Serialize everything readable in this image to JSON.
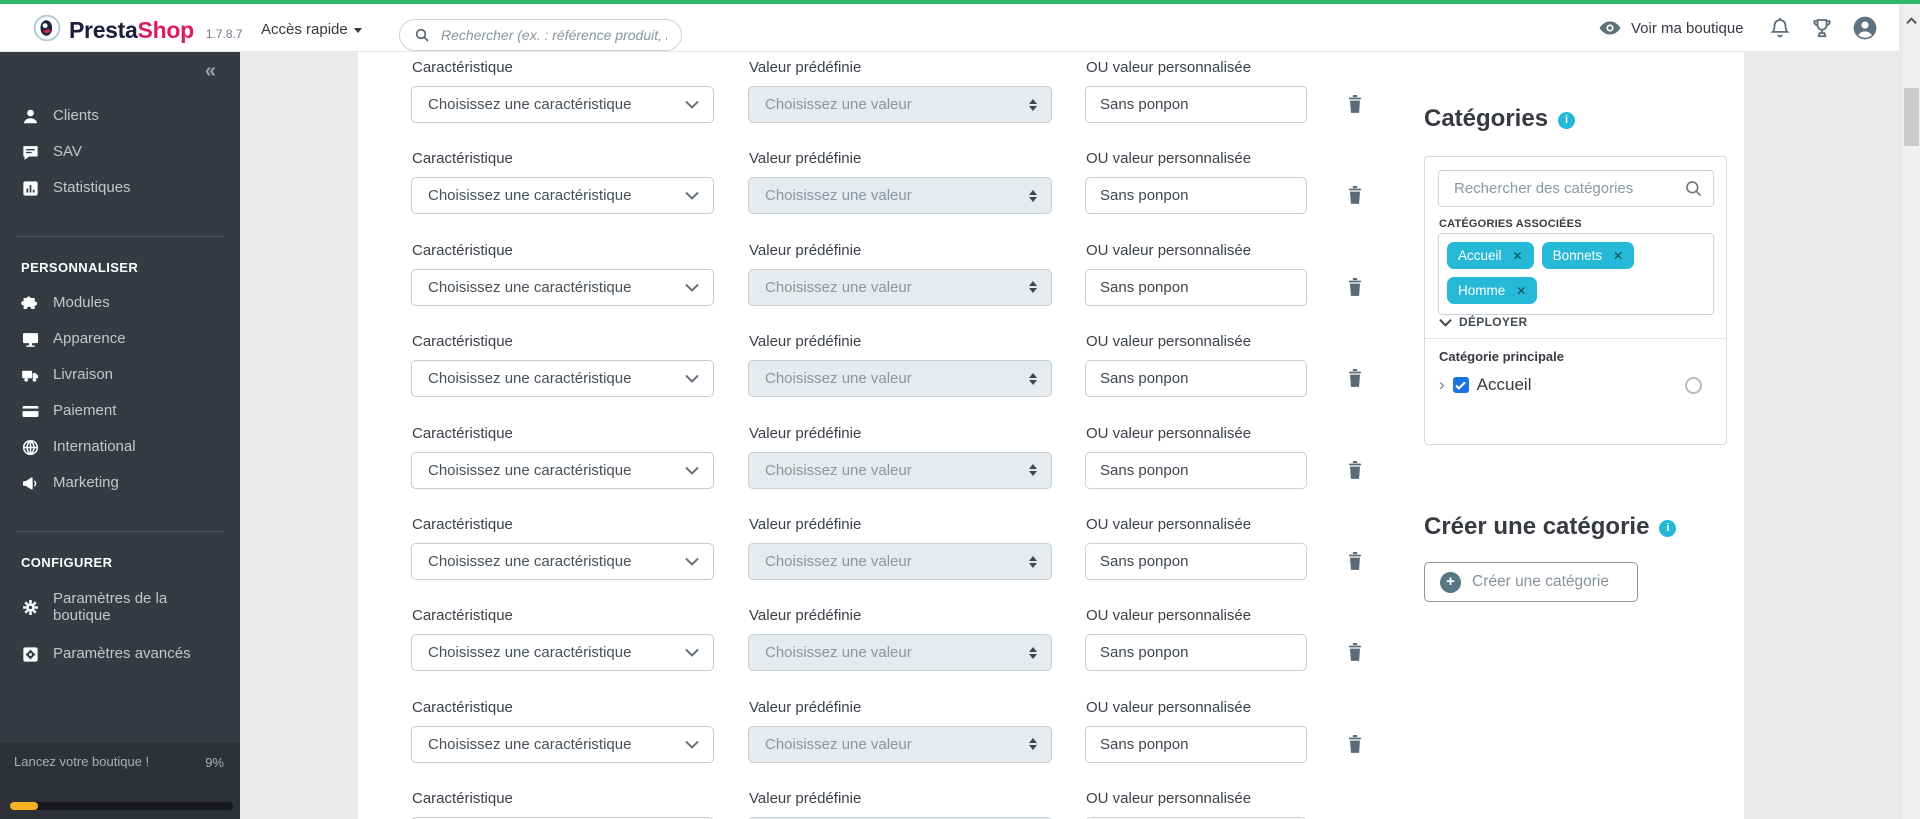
{
  "topbar": {
    "brand_primary": "Presta",
    "brand_secondary": "Shop",
    "version": "1.7.8.7",
    "quick_access_label": "Accès rapide",
    "search_placeholder": "Rechercher (ex. : référence produit, no",
    "view_shop_label": "Voir ma boutique",
    "right_icons": [
      "eye-icon",
      "bell-icon",
      "trophy-icon",
      "avatar-icon"
    ]
  },
  "sidebar": {
    "collapse_glyph": "«",
    "sections": [
      {
        "header": "",
        "items": [
          {
            "label": "Clients",
            "icon": "person-icon"
          },
          {
            "label": "SAV",
            "icon": "chat-icon"
          },
          {
            "label": "Statistiques",
            "icon": "stats-icon"
          }
        ]
      },
      {
        "header": "PERSONNALISER",
        "items": [
          {
            "label": "Modules",
            "icon": "puzzle-icon"
          },
          {
            "label": "Apparence",
            "icon": "monitor-icon"
          },
          {
            "label": "Livraison",
            "icon": "truck-icon"
          },
          {
            "label": "Paiement",
            "icon": "card-icon"
          },
          {
            "label": "International",
            "icon": "globe-icon"
          },
          {
            "label": "Marketing",
            "icon": "megaphone-icon"
          }
        ]
      },
      {
        "header": "CONFIGURER",
        "items": [
          {
            "label": "Paramètres de la boutique",
            "icon": "gear-icon"
          },
          {
            "label": "Paramètres avancés",
            "icon": "advanced-gear-icon"
          }
        ]
      }
    ],
    "footer": {
      "label": "Lancez votre boutique !",
      "percent_label": "9%",
      "progress_percent": 9
    }
  },
  "form": {
    "rows": [
      {
        "feature_label": "Caractéristique",
        "feature_value": "Choisissez une caractéristique",
        "predef_label": "Valeur prédéfinie",
        "predef_value": "Choisissez une valeur",
        "custom_label": "OU valeur personnalisée",
        "custom_value": "Sans ponpon"
      },
      {
        "feature_label": "Caractéristique",
        "feature_value": "Choisissez une caractéristique",
        "predef_label": "Valeur prédéfinie",
        "predef_value": "Choisissez une valeur",
        "custom_label": "OU valeur personnalisée",
        "custom_value": "Sans ponpon"
      },
      {
        "feature_label": "Caractéristique",
        "feature_value": "Choisissez une caractéristique",
        "predef_label": "Valeur prédéfinie",
        "predef_value": "Choisissez une valeur",
        "custom_label": "OU valeur personnalisée",
        "custom_value": "Sans ponpon"
      },
      {
        "feature_label": "Caractéristique",
        "feature_value": "Choisissez une caractéristique",
        "predef_label": "Valeur prédéfinie",
        "predef_value": "Choisissez une valeur",
        "custom_label": "OU valeur personnalisée",
        "custom_value": "Sans ponpon"
      },
      {
        "feature_label": "Caractéristique",
        "feature_value": "Choisissez une caractéristique",
        "predef_label": "Valeur prédéfinie",
        "predef_value": "Choisissez une valeur",
        "custom_label": "OU valeur personnalisée",
        "custom_value": "Sans ponpon"
      },
      {
        "feature_label": "Caractéristique",
        "feature_value": "Choisissez une caractéristique",
        "predef_label": "Valeur prédéfinie",
        "predef_value": "Choisissez une valeur",
        "custom_label": "OU valeur personnalisée",
        "custom_value": "Sans ponpon"
      },
      {
        "feature_label": "Caractéristique",
        "feature_value": "Choisissez une caractéristique",
        "predef_label": "Valeur prédéfinie",
        "predef_value": "Choisissez une valeur",
        "custom_label": "OU valeur personnalisée",
        "custom_value": "Sans ponpon"
      },
      {
        "feature_label": "Caractéristique",
        "feature_value": "Choisissez une caractéristique",
        "predef_label": "Valeur prédéfinie",
        "predef_value": "Choisissez une valeur",
        "custom_label": "OU valeur personnalisée",
        "custom_value": "Sans ponpon"
      },
      {
        "feature_label": "Caractéristique",
        "feature_value": "Choisissez une caractéristique",
        "predef_label": "Valeur prédéfinie",
        "predef_value": "Choisissez une valeur",
        "custom_label": "OU valeur personnalisée",
        "custom_value": "Sans ponpon"
      }
    ]
  },
  "categories": {
    "title": "Catégories",
    "search_placeholder": "Rechercher des catégories",
    "associated_header": "CATÉGORIES ASSOCIÉES",
    "tags": [
      "Accueil",
      "Bonnets",
      "Homme"
    ],
    "expand_label": "DÉPLOYER",
    "main_category_label": "Catégorie principale",
    "tree_item_label": "Accueil",
    "tree_item_checked": true,
    "create_title": "Créer une catégorie",
    "create_button_label": "Créer une catégorie"
  },
  "colors": {
    "accent_teal": "#25b9d7",
    "topbar_green": "#31b768",
    "brand_dark": "#1c1e3a",
    "brand_pink": "#df1a60",
    "progress_yellow": "#f6b21f",
    "checkbox_blue": "#1a73e8",
    "sidebar_bg": "#363a41"
  }
}
